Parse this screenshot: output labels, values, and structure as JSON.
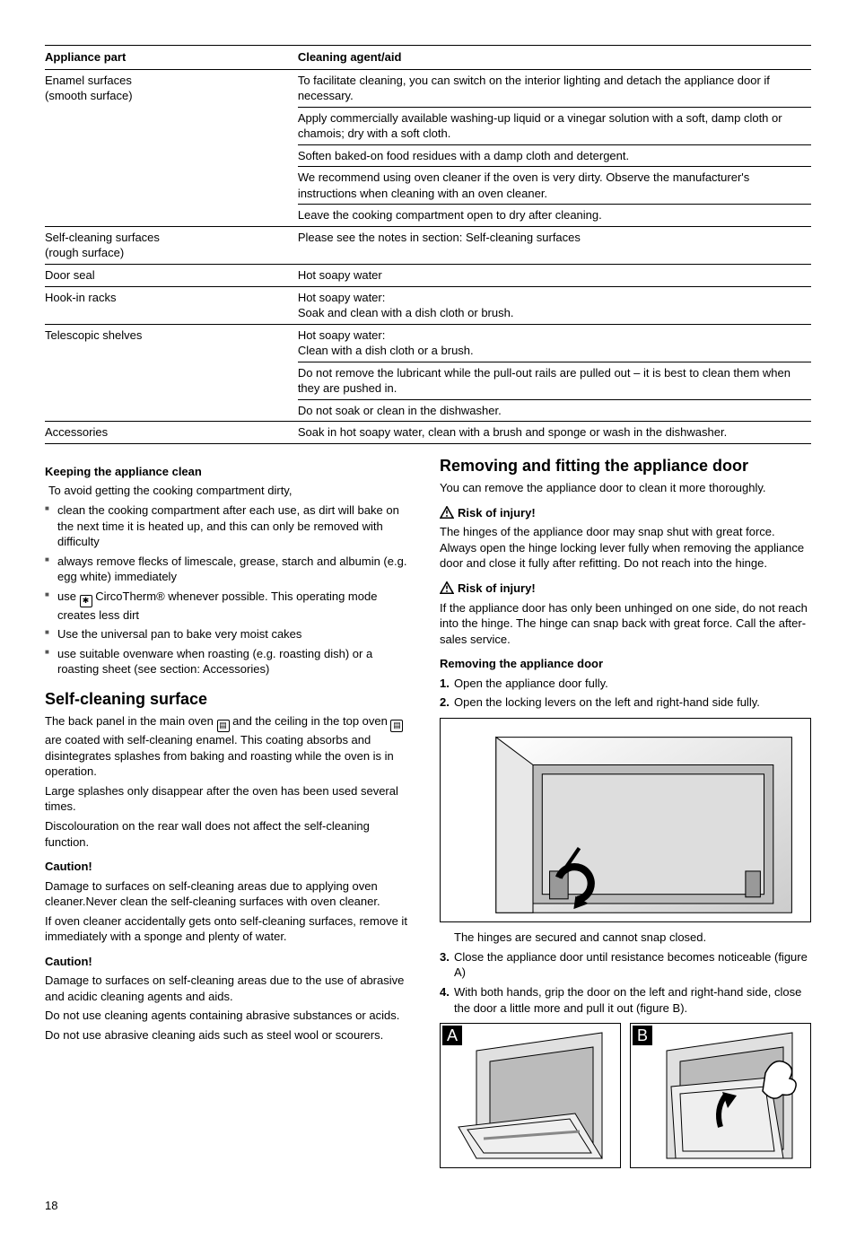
{
  "table": {
    "headers": {
      "part": "Appliance part",
      "agent": "Cleaning agent/aid"
    },
    "rows": [
      {
        "part": "Enamel surfaces\n(smooth surface)",
        "cells": [
          "To facilitate cleaning, you can switch on the interior lighting and detach the appliance door if necessary.",
          "Apply commercially available washing-up liquid or a vinegar solution with a soft, damp cloth or chamois; dry with a soft cloth.",
          "Soften baked-on food residues with a damp cloth and detergent.",
          "We recommend using oven cleaner if the oven is very dirty. Observe the manufacturer's instructions when cleaning with an oven cleaner.",
          "Leave the cooking compartment open to dry after cleaning."
        ]
      },
      {
        "part": "Self-cleaning surfaces\n(rough surface)",
        "cells": [
          "Please see the notes in section: Self-cleaning surfaces"
        ]
      },
      {
        "part": "Door seal",
        "cells": [
          "Hot soapy water"
        ]
      },
      {
        "part": "Hook-in racks",
        "cells": [
          "Hot soapy water:\nSoak and clean with a dish cloth or brush."
        ]
      },
      {
        "part": "Telescopic shelves",
        "cells": [
          "Hot soapy water:\nClean with a dish cloth or a brush.",
          "Do not remove the lubricant while the pull-out rails are pulled out – it is best to clean them when they are pushed in.",
          "Do not soak or clean in the dishwasher."
        ]
      },
      {
        "part": "Accessories",
        "cells": [
          "Soak in hot soapy water, clean with a brush and sponge or wash in the dishwasher."
        ]
      }
    ]
  },
  "left": {
    "keeping_head": "Keeping the appliance clean",
    "keeping_intro": "To avoid getting the cooking compartment dirty,",
    "bullets": [
      "clean the cooking compartment after each use, as dirt will bake on the next time it is heated up, and this can only be removed with difficulty",
      "always remove flecks of limescale, grease, starch and albumin (e.g. egg white) immediately",
      "use ☐ CircoTherm® whenever possible. This operating mode creates less dirt",
      "Use the universal pan to bake very moist cakes",
      "use suitable ovenware when roasting (e.g. roasting dish) or a roasting sheet (see section: Accessories)"
    ],
    "self_h2": "Self-cleaning surface",
    "self_p1a": "The back panel in the main oven ",
    "self_p1b": " and the ceiling in the top oven ",
    "self_p1c": " are coated with self-cleaning enamel. This coating absorbs and disintegrates splashes from baking and roasting while the oven is in operation.",
    "self_p2": "Large splashes only disappear after the oven has been used several times.",
    "self_p3": "Discolouration on the rear wall does not affect the self-cleaning function.",
    "caution": "Caution!",
    "c1_p1": "Damage to surfaces on self-cleaning areas due to applying oven cleaner.Never clean the self-cleaning surfaces with oven cleaner.",
    "c1_p2": "If oven cleaner accidentally gets onto self-cleaning surfaces, remove it immediately with a sponge and plenty of water.",
    "c2_p1": "Damage to surfaces on self-cleaning areas due to the use of abrasive and acidic cleaning agents and aids.",
    "c2_p2": "Do not use cleaning agents containing abrasive substances or acids.",
    "c2_p3": "Do not use abrasive cleaning aids such as steel wool or scourers."
  },
  "right": {
    "h2": "Removing and fitting the appliance door",
    "intro": "You can remove the appliance door to clean it more thoroughly.",
    "risk": "Risk of injury!",
    "risk1": "The hinges of the appliance door may snap shut with great force. Always open the hinge locking lever fully when removing the appliance door and close it fully after refitting. Do not reach into the hinge.",
    "risk2": "If the appliance door has only been unhinged on one side, do not reach into the hinge. The hinge can snap back with great force. Call the after-sales service.",
    "removing_head": "Removing the appliance door",
    "steps": [
      "Open the appliance door fully.",
      "Open the locking levers on the left and right-hand side fully.",
      "Close the appliance door until resistance becomes noticeable (figure A)",
      "With both hands, grip the door on the left and right-hand side, close the door a little more and pull it out (figure B)."
    ],
    "hinge_note": "The hinges are secured and cannot snap closed.",
    "label_a": "A",
    "label_b": "B"
  },
  "pagenum": "18"
}
